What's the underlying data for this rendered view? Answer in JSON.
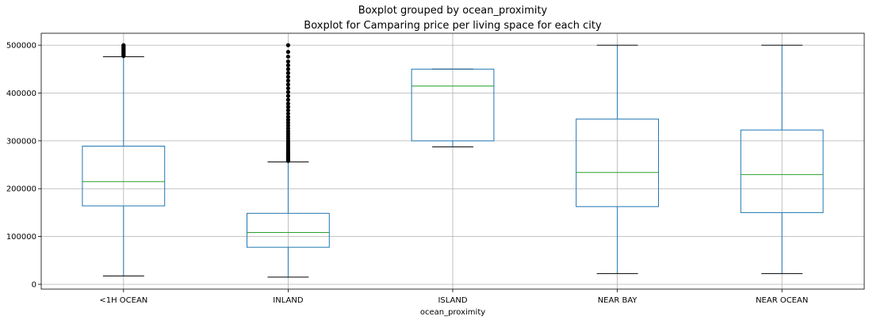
{
  "suptitle": "Boxplot grouped by ocean_proximity",
  "chart_data": {
    "type": "box",
    "title": "Boxplot for Camparing price per living space for each city",
    "xlabel": "ocean_proximity",
    "ylabel": "",
    "ylim": [
      -10000,
      525000
    ],
    "yticks": [
      0,
      100000,
      200000,
      300000,
      400000,
      500000
    ],
    "ytick_labels": [
      "0",
      "100000",
      "200000",
      "300000",
      "400000",
      "500000"
    ],
    "grid": true,
    "categories": [
      "<1H OCEAN",
      "INLAND",
      "ISLAND",
      "NEAR BAY",
      "NEAR OCEAN"
    ],
    "boxes": [
      {
        "name": "<1H OCEAN",
        "whisker_low": 17500,
        "q1": 164000,
        "median": 214800,
        "q3": 289000,
        "whisker_high": 476000,
        "fliers": [
          477500,
          480000,
          482500,
          485000,
          487500,
          490000,
          492500,
          495000,
          497500,
          500000
        ]
      },
      {
        "name": "INLAND",
        "whisker_low": 15000,
        "q1": 77500,
        "median": 108500,
        "q3": 148500,
        "whisker_high": 256000,
        "fliers": [
          258000,
          261000,
          264000,
          267000,
          270000,
          273000,
          276000,
          280000,
          284000,
          288000,
          292000,
          296000,
          300000,
          305000,
          310000,
          315000,
          320000,
          326000,
          332000,
          338000,
          344000,
          350000,
          357000,
          364000,
          371000,
          378000,
          386000,
          394000,
          402000,
          410000,
          418000,
          426000,
          434000,
          442000,
          450000,
          458000,
          466000,
          476000,
          486000,
          500000
        ]
      },
      {
        "name": "ISLAND",
        "whisker_low": 287500,
        "q1": 300000,
        "median": 414700,
        "q3": 450000,
        "whisker_high": 450000,
        "fliers": []
      },
      {
        "name": "NEAR BAY",
        "whisker_low": 22500,
        "q1": 162500,
        "median": 233800,
        "q3": 345700,
        "whisker_high": 500000,
        "fliers": []
      },
      {
        "name": "NEAR OCEAN",
        "whisker_low": 22500,
        "q1": 150000,
        "median": 229500,
        "q3": 322700,
        "whisker_high": 500000,
        "fliers": []
      }
    ]
  }
}
